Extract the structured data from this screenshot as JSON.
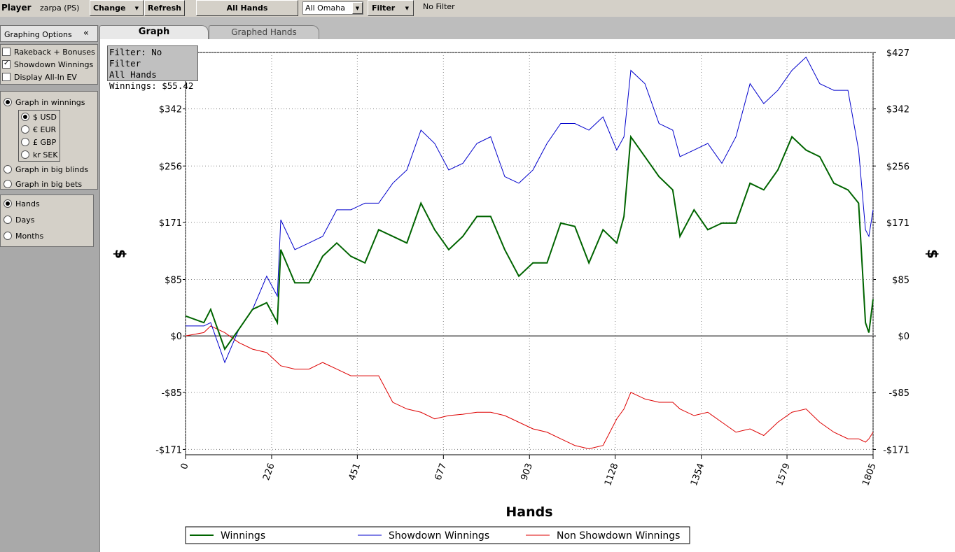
{
  "toolbar": {
    "player_label": "Player",
    "player": "zarpa (PS)",
    "change": "Change",
    "refresh": "Refresh",
    "all_hands": "All Hands",
    "game": "All Omaha",
    "filter": "Filter",
    "filter_status": "No Filter"
  },
  "sidebar": {
    "title": "Graphing Options",
    "checkboxes": [
      {
        "label": "Rakeback + Bonuses",
        "checked": false
      },
      {
        "label": "Showdown Winnings",
        "checked": true
      },
      {
        "label": "Display All-In EV",
        "checked": false
      }
    ],
    "units": [
      {
        "label": "Graph in winnings",
        "checked": true
      },
      {
        "label": "Graph in big blinds",
        "checked": false
      },
      {
        "label": "Graph in big bets",
        "checked": false
      }
    ],
    "currencies": [
      {
        "label": "$ USD",
        "checked": true
      },
      {
        "label": "€ EUR",
        "checked": false
      },
      {
        "label": "£ GBP",
        "checked": false
      },
      {
        "label": "kr SEK",
        "checked": false
      }
    ],
    "periods": [
      {
        "label": "Hands",
        "checked": true
      },
      {
        "label": "Days",
        "checked": false
      },
      {
        "label": "Months",
        "checked": false
      }
    ]
  },
  "tabs": [
    "Graph",
    "Graphed Hands"
  ],
  "info": [
    "Filter: No Filter",
    "All Hands",
    "Winnings: $55.42"
  ],
  "chart_data": {
    "type": "line",
    "x_label": "Hands",
    "y_label": "$",
    "y2_label": "$",
    "xlim": [
      0,
      1805
    ],
    "ylim": [
      -179,
      427
    ],
    "xticks": [
      0,
      226,
      451,
      677,
      903,
      1128,
      1354,
      1579,
      1805
    ],
    "yticks": [
      {
        "value": -171,
        "label": "-$171"
      },
      {
        "value": -85,
        "label": "-$85"
      },
      {
        "value": 0,
        "label": "$0"
      },
      {
        "value": 85,
        "label": "$85"
      },
      {
        "value": 171,
        "label": "$171"
      },
      {
        "value": 256,
        "label": "$256"
      },
      {
        "value": 342,
        "label": "$342"
      },
      {
        "value": 427,
        "label": "$427"
      }
    ],
    "grid": true,
    "x": [
      0,
      48,
      66,
      103,
      140,
      176,
      213,
      241,
      250,
      287,
      324,
      360,
      397,
      434,
      471,
      507,
      544,
      581,
      618,
      654,
      691,
      728,
      765,
      801,
      838,
      875,
      912,
      949,
      985,
      1022,
      1059,
      1096,
      1132,
      1151,
      1169,
      1206,
      1243,
      1279,
      1298,
      1335,
      1371,
      1408,
      1445,
      1482,
      1518,
      1555,
      1592,
      1629,
      1665,
      1702,
      1739,
      1767,
      1785,
      1794,
      1805
    ],
    "series": [
      {
        "name": "Winnings",
        "color": "#006400",
        "values": [
          30,
          20,
          40,
          -20,
          10,
          40,
          50,
          20,
          130,
          80,
          80,
          120,
          140,
          120,
          110,
          160,
          150,
          140,
          200,
          160,
          130,
          150,
          180,
          180,
          130,
          90,
          110,
          110,
          170,
          165,
          110,
          160,
          140,
          180,
          300,
          270,
          240,
          220,
          150,
          190,
          160,
          170,
          170,
          230,
          220,
          250,
          300,
          280,
          270,
          230,
          220,
          200,
          20,
          5,
          55.42
        ]
      },
      {
        "name": "Showdown Winnings",
        "color": "#0000cc",
        "values": [
          15,
          15,
          20,
          -40,
          10,
          40,
          90,
          60,
          175,
          130,
          140,
          150,
          190,
          190,
          200,
          200,
          230,
          250,
          310,
          290,
          250,
          260,
          290,
          300,
          240,
          230,
          250,
          290,
          320,
          320,
          310,
          330,
          280,
          300,
          400,
          380,
          320,
          310,
          270,
          280,
          290,
          260,
          300,
          380,
          350,
          370,
          400,
          420,
          380,
          370,
          370,
          280,
          160,
          150,
          190
        ]
      },
      {
        "name": "Non Showdown Winnings",
        "color": "#dd0000",
        "values": [
          0,
          5,
          15,
          5,
          -10,
          -20,
          -25,
          -40,
          -45,
          -50,
          -50,
          -40,
          -50,
          -60,
          -60,
          -60,
          -100,
          -110,
          -115,
          -125,
          -120,
          -118,
          -115,
          -115,
          -120,
          -130,
          -140,
          -145,
          -155,
          -165,
          -170,
          -165,
          -125,
          -110,
          -85,
          -95,
          -100,
          -100,
          -110,
          -120,
          -115,
          -130,
          -145,
          -140,
          -150,
          -130,
          -115,
          -110,
          -130,
          -145,
          -155,
          -155,
          -160,
          -155,
          -145
        ]
      }
    ]
  }
}
